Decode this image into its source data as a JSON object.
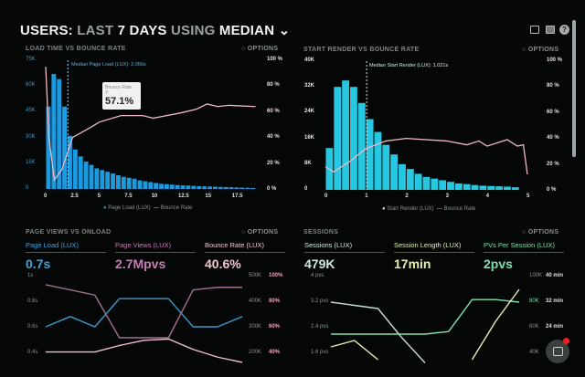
{
  "header": {
    "prefix": "USERS:",
    "last": "LAST",
    "days": "7 DAYS",
    "using": "USING",
    "metric": "MEDIAN",
    "icons": [
      "monitor-icon",
      "chart-icon",
      "help-icon"
    ]
  },
  "options_label": "OPTIONS",
  "panels": {
    "load": {
      "title": "LOAD TIME VS BOUNCE RATE",
      "median": "Median Page Load (LUX): 2.056s",
      "legend": [
        "Page Load (LUX)",
        "Bounce Rate"
      ],
      "left_ticks": [
        "0",
        "15K",
        "30K",
        "45K",
        "60K",
        "75K"
      ],
      "right_ticks": [
        "0 %",
        "20 %",
        "40 %",
        "60 %",
        "80 %",
        "100 %"
      ],
      "x_ticks": [
        "0",
        "2.5",
        "5",
        "7.5",
        "10",
        "12.5",
        "15",
        "17.5"
      ],
      "tooltip": {
        "label": "Bounce Rate",
        "sub": "Y:",
        "value": "57.1%"
      }
    },
    "render": {
      "title": "START RENDER VS BOUNCE RATE",
      "median": "Median Start Render (LUX): 1.021s",
      "legend": [
        "Start Render (LUX)",
        "Bounce Rate"
      ],
      "left_ticks": [
        "0",
        "8K",
        "16K",
        "24K",
        "32K",
        "40K"
      ],
      "right_ticks": [
        "0 %",
        "20 %",
        "40 %",
        "60 %",
        "80 %",
        "100 %"
      ],
      "x_ticks": [
        "0",
        "1",
        "2",
        "3",
        "4",
        "5"
      ]
    },
    "pageviews": {
      "title": "PAGE VIEWS VS ONLOAD",
      "metrics": [
        {
          "label": "Page Load (LUX)",
          "value": "0.7s",
          "color": "#3ea6e0"
        },
        {
          "label": "Page Views (LUX)",
          "value": "2.7Mpvs",
          "color": "#c97bb8"
        },
        {
          "label": "Bounce Rate (LUX)",
          "value": "40.6%",
          "color": "#f3c6cf"
        }
      ],
      "left_ticks": [
        "1s",
        "0.8s",
        "0.6s",
        "0.4s"
      ],
      "right_ticks_a": [
        "500K",
        "400K",
        "300K",
        "200K"
      ],
      "right_ticks_b": [
        "100%",
        "80%",
        "60%",
        "40%"
      ]
    },
    "sessions": {
      "title": "SESSIONS",
      "metrics": [
        {
          "label": "Sessions (LUX)",
          "value": "479K",
          "color": "#cfeadb"
        },
        {
          "label": "Session Length (LUX)",
          "value": "17min",
          "color": "#e6f0b0"
        },
        {
          "label": "PVs Per Session (LUX)",
          "value": "2pvs",
          "color": "#7fe0b0"
        }
      ],
      "left_ticks": [
        "4 pvs",
        "3.2 pvs",
        "2.4 pvs",
        "1.6 pvs"
      ],
      "right_ticks_a": [
        "100K",
        "80K",
        "60K",
        "40K"
      ],
      "right_ticks_b": [
        "40 min",
        "32 min",
        "24 min",
        ""
      ]
    }
  },
  "colors": {
    "bar_blue": "#1a9be0",
    "bar_cyan": "#25c8e0",
    "bounce": "#f0b8c4"
  },
  "chart_data": [
    {
      "type": "bar",
      "title": "LOAD TIME VS BOUNCE RATE",
      "bin": 0.5,
      "ylim": [
        0,
        75000
      ],
      "y2lim": [
        0,
        100
      ],
      "xlim": [
        0,
        19.5
      ],
      "bars": [
        48,
        67,
        64,
        48,
        31,
        23,
        19,
        16,
        14,
        12,
        11,
        10,
        9,
        8,
        7,
        6.5,
        6,
        5,
        4.5,
        4,
        3.5,
        3,
        2.8,
        2.5,
        2.3,
        2.1,
        2,
        1.8,
        1.6,
        1.5,
        1.4,
        1.3,
        1.2,
        1.1,
        1,
        0.9,
        0.8,
        0.7,
        0.6
      ],
      "bars_unit": "K",
      "median": 2.056,
      "bounce": [
        [
          0,
          95
        ],
        [
          0.3,
          40
        ],
        [
          0.8,
          7
        ],
        [
          1.5,
          15
        ],
        [
          2.5,
          40
        ],
        [
          4,
          47
        ],
        [
          5,
          52
        ],
        [
          7,
          57
        ],
        [
          9,
          57
        ],
        [
          10,
          55
        ],
        [
          12.5,
          59
        ],
        [
          14,
          62
        ],
        [
          15,
          66
        ],
        [
          16,
          64
        ],
        [
          17,
          65
        ],
        [
          19.5,
          64
        ]
      ]
    },
    {
      "type": "bar",
      "title": "START RENDER VS BOUNCE RATE",
      "bin": 0.2,
      "ylim": [
        0,
        40000
      ],
      "y2lim": [
        0,
        100
      ],
      "xlim": [
        0,
        5
      ],
      "bars": [
        13,
        32,
        34,
        32,
        27,
        22,
        18,
        14,
        11,
        8,
        6.5,
        5,
        4,
        3.5,
        3,
        2.5,
        2,
        1.8,
        1.5,
        1.3,
        1.2,
        1.1,
        1,
        0.8
      ],
      "bars_unit": "K",
      "median": 1.021,
      "bounce": [
        [
          0,
          18
        ],
        [
          0.2,
          14
        ],
        [
          0.6,
          22
        ],
        [
          1,
          32
        ],
        [
          1.5,
          38
        ],
        [
          2,
          40
        ],
        [
          3,
          38
        ],
        [
          3.5,
          35
        ],
        [
          3.8,
          38
        ],
        [
          4,
          34
        ],
        [
          4.5,
          39
        ],
        [
          4.75,
          34
        ],
        [
          4.9,
          35
        ],
        [
          5,
          12
        ]
      ]
    },
    {
      "type": "line",
      "title": "PAGE VIEWS VS ONLOAD",
      "x": [
        0,
        1,
        2,
        3,
        4,
        5,
        6,
        7,
        8
      ],
      "series": [
        {
          "name": "Page Load (LUX)",
          "values": [
            0.6,
            0.68,
            0.6,
            0.82,
            0.82,
            0.82,
            0.6,
            0.6,
            0.68
          ]
        },
        {
          "name": "Page Views (LUX)",
          "values": [
            465,
            445,
            425,
            260,
            260,
            260,
            445,
            455,
            455
          ]
        },
        {
          "name": "Bounce Rate (LUX)",
          "values": [
            41,
            41,
            41,
            46,
            50,
            51,
            43,
            37,
            33
          ]
        }
      ]
    },
    {
      "type": "line",
      "title": "SESSIONS",
      "x": [
        0,
        1,
        2,
        3,
        4,
        5,
        6,
        7,
        8
      ],
      "series": [
        {
          "name": "PVs Per Session (LUX)",
          "values": [
            3.2,
            3.1,
            3.0,
            2.1,
            1.3,
            null,
            null,
            null,
            null
          ]
        },
        {
          "name": "Sessions (LUX)",
          "values": [
            55,
            55,
            55,
            55,
            55,
            57,
            82,
            82,
            80
          ]
        },
        {
          "name": "Session Length (LUX)",
          "values": [
            18,
            20,
            14,
            null,
            null,
            null,
            14,
            26,
            36
          ]
        }
      ]
    }
  ]
}
